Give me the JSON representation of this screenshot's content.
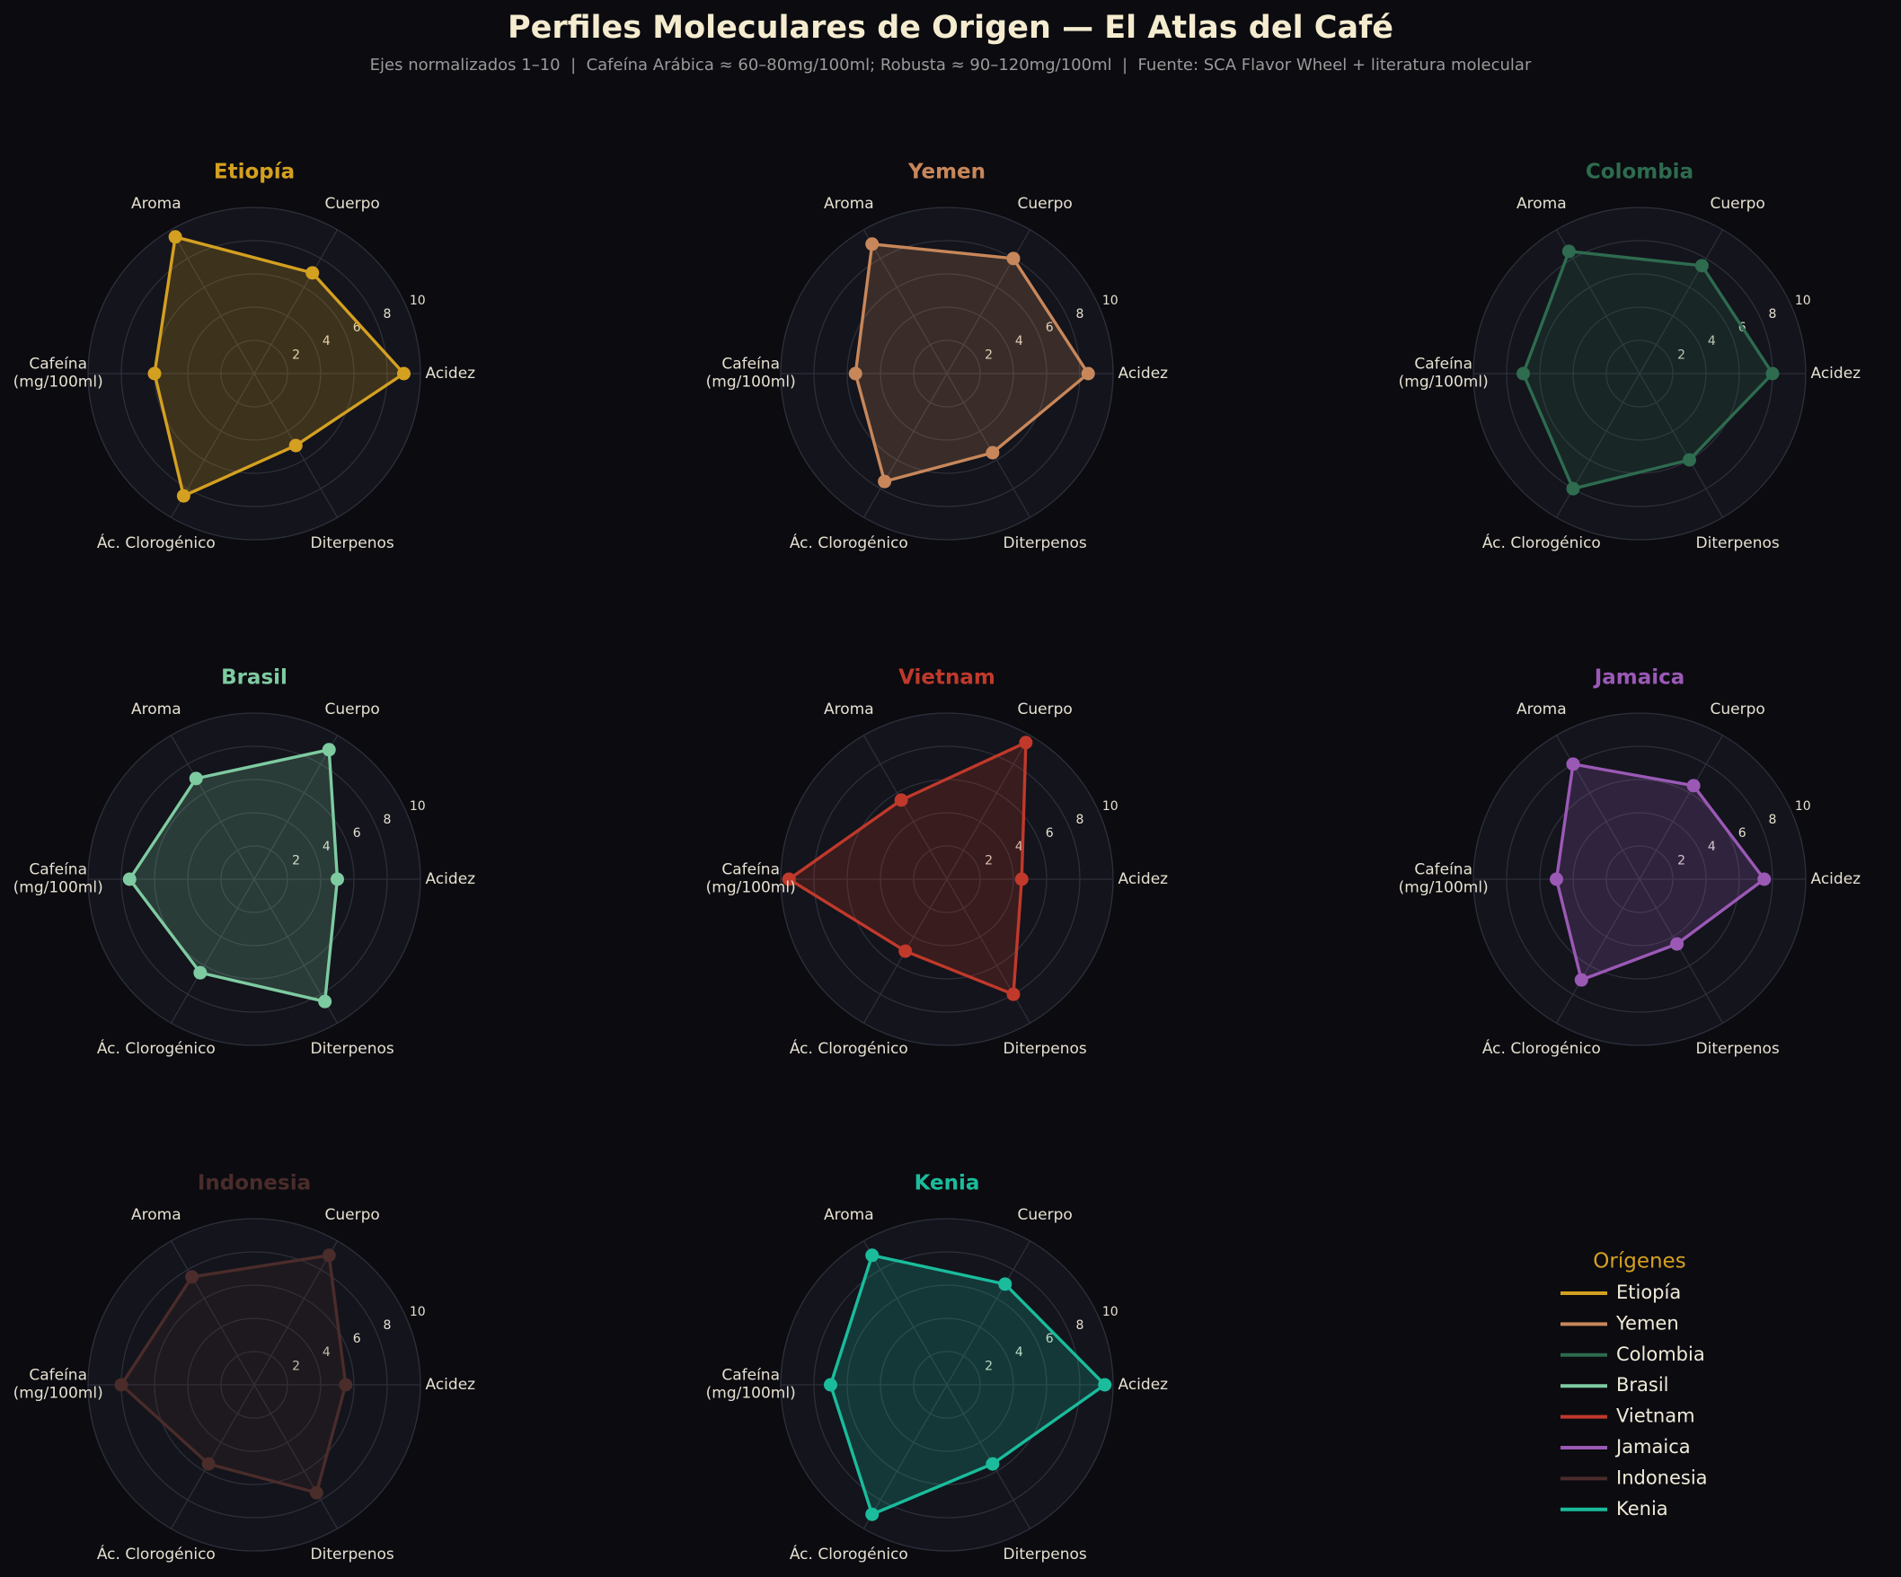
{
  "chart_data": {
    "type": "radar",
    "title": "Perfiles Moleculares de Origen — El Atlas del Café",
    "subtitle": "Ejes normalizados 1–10  |  Cafeína Arábica ≈ 60–80mg/100ml; Robusta ≈ 90–120mg/100ml  |  Fuente: SCA Flavor Wheel + literatura molecular",
    "categories": [
      "Acidez",
      "Cuerpo",
      "Aroma",
      "Cafeína\n(mg/100ml)",
      "Ác. Clorogénico",
      "Diterpenos"
    ],
    "rlim": [
      0,
      10
    ],
    "rticks": [
      2,
      4,
      6,
      8,
      10
    ],
    "grid": true,
    "legend_title": "Orígenes",
    "series": [
      {
        "name": "Etiopía",
        "color": "#d4a020",
        "values": [
          9,
          7,
          9.5,
          6,
          8.5,
          5
        ]
      },
      {
        "name": "Yemen",
        "color": "#c8875a",
        "values": [
          8.5,
          8,
          9,
          5.5,
          7.5,
          5.5
        ]
      },
      {
        "name": "Colombia",
        "color": "#2e6b4f",
        "values": [
          8,
          7.5,
          8.5,
          7,
          8,
          6
        ]
      },
      {
        "name": "Brasil",
        "color": "#7ecba1",
        "values": [
          5,
          9,
          7,
          7.5,
          6.5,
          8.5
        ]
      },
      {
        "name": "Vietnam",
        "color": "#c0392b",
        "values": [
          4.5,
          9.5,
          5.5,
          9.5,
          5,
          8
        ]
      },
      {
        "name": "Jamaica",
        "color": "#9b59b6",
        "values": [
          7.5,
          6.5,
          8,
          5,
          7,
          4.5
        ]
      },
      {
        "name": "Indonesia",
        "color": "#4a2c2a",
        "values": [
          5.5,
          9,
          7.5,
          8,
          5.5,
          7.5
        ]
      },
      {
        "name": "Kenia",
        "color": "#1abc9c",
        "values": [
          9.5,
          7,
          9,
          7,
          9,
          5.5
        ]
      }
    ]
  }
}
